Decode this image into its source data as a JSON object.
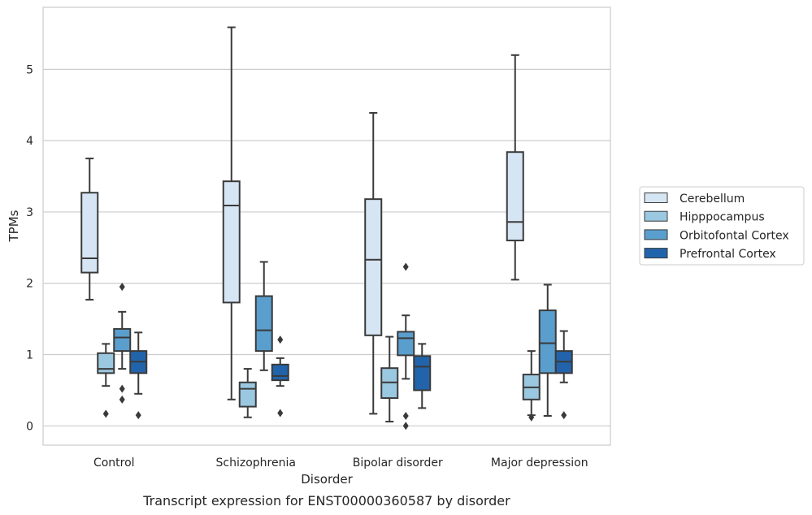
{
  "caption": "Transcript expression for ENST00000360587 by disorder",
  "colors": {
    "grid": "#cccccc",
    "frame": "#cccccc",
    "box_edge": "#3a3a3a",
    "series": [
      "#d6e5f3",
      "#9ac8e0",
      "#5a9ecd",
      "#2264ab"
    ]
  },
  "chart_data": {
    "type": "box",
    "title": "",
    "xlabel": "Disorder",
    "ylabel": "TPMs",
    "ylim": [
      -0.27,
      5.87
    ],
    "yticks": [
      0,
      1,
      2,
      3,
      4,
      5
    ],
    "grid": "horizontal",
    "legend_placement": "right",
    "categories": [
      "Control",
      "Schizophrenia",
      "Bipolar disorder",
      "Major depression"
    ],
    "series": [
      {
        "name": "Cerebellum",
        "boxes": [
          {
            "whisker_low": 1.77,
            "q1": 2.15,
            "median": 2.35,
            "q3": 3.27,
            "whisker_high": 3.75,
            "outliers": []
          },
          {
            "whisker_low": 0.37,
            "q1": 1.73,
            "median": 3.09,
            "q3": 3.43,
            "whisker_high": 5.59,
            "outliers": []
          },
          {
            "whisker_low": 0.17,
            "q1": 1.27,
            "median": 2.33,
            "q3": 3.18,
            "whisker_high": 4.39,
            "outliers": []
          },
          {
            "whisker_low": 2.05,
            "q1": 2.6,
            "median": 2.86,
            "q3": 3.84,
            "whisker_high": 5.2,
            "outliers": []
          }
        ]
      },
      {
        "name": "Hipppocampus",
        "boxes": [
          {
            "whisker_low": 0.56,
            "q1": 0.74,
            "median": 0.8,
            "q3": 1.02,
            "whisker_high": 1.15,
            "outliers": [
              0.17
            ]
          },
          {
            "whisker_low": 0.12,
            "q1": 0.27,
            "median": 0.52,
            "q3": 0.61,
            "whisker_high": 0.8,
            "outliers": []
          },
          {
            "whisker_low": 0.06,
            "q1": 0.39,
            "median": 0.61,
            "q3": 0.81,
            "whisker_high": 1.25,
            "outliers": []
          },
          {
            "whisker_low": 0.15,
            "q1": 0.37,
            "median": 0.54,
            "q3": 0.72,
            "whisker_high": 1.05,
            "outliers": [
              0.12
            ]
          }
        ]
      },
      {
        "name": "Orbitofontal Cortex",
        "boxes": [
          {
            "whisker_low": 0.8,
            "q1": 1.05,
            "median": 1.24,
            "q3": 1.36,
            "whisker_high": 1.6,
            "outliers": [
              1.95,
              0.52,
              0.37
            ]
          },
          {
            "whisker_low": 0.78,
            "q1": 1.05,
            "median": 1.34,
            "q3": 1.82,
            "whisker_high": 2.3,
            "outliers": []
          },
          {
            "whisker_low": 0.66,
            "q1": 0.99,
            "median": 1.23,
            "q3": 1.32,
            "whisker_high": 1.55,
            "outliers": [
              2.23,
              0.14,
              0.0
            ]
          },
          {
            "whisker_low": 0.14,
            "q1": 0.74,
            "median": 1.16,
            "q3": 1.62,
            "whisker_high": 1.98,
            "outliers": []
          }
        ]
      },
      {
        "name": "Prefrontal Cortex",
        "boxes": [
          {
            "whisker_low": 0.45,
            "q1": 0.74,
            "median": 0.9,
            "q3": 1.05,
            "whisker_high": 1.31,
            "outliers": [
              0.15
            ]
          },
          {
            "whisker_low": 0.56,
            "q1": 0.64,
            "median": 0.7,
            "q3": 0.86,
            "whisker_high": 0.95,
            "outliers": [
              1.21,
              0.18
            ]
          },
          {
            "whisker_low": 0.25,
            "q1": 0.5,
            "median": 0.83,
            "q3": 0.98,
            "whisker_high": 1.15,
            "outliers": []
          },
          {
            "whisker_low": 0.61,
            "q1": 0.74,
            "median": 0.9,
            "q3": 1.05,
            "whisker_high": 1.33,
            "outliers": [
              0.15
            ]
          }
        ]
      }
    ]
  }
}
